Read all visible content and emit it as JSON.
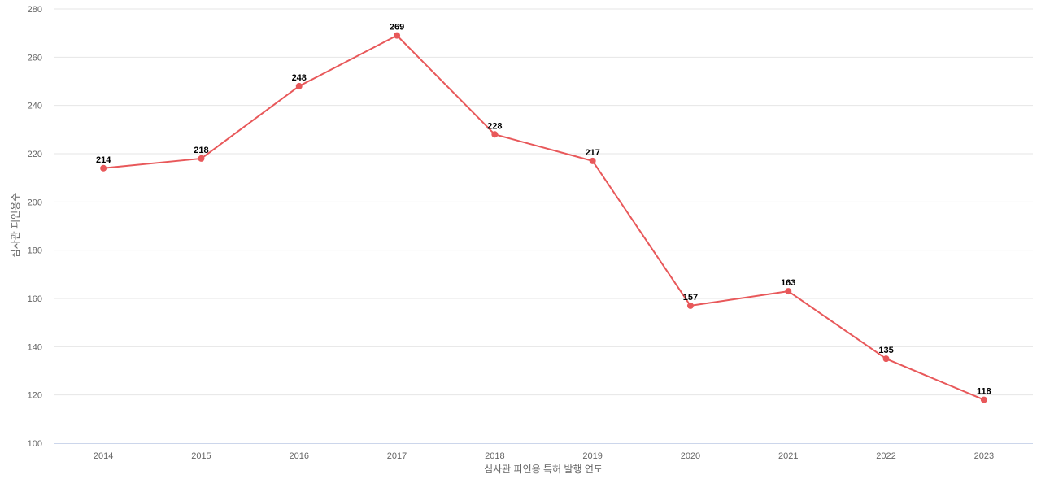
{
  "chart_data": {
    "type": "line",
    "title": "",
    "xlabel": "심사관 피인용 특허 발행 연도",
    "ylabel": "심사관 피인용수",
    "x": [
      "2014",
      "2015",
      "2016",
      "2017",
      "2018",
      "2019",
      "2020",
      "2021",
      "2022",
      "2023"
    ],
    "series": [
      {
        "values": [
          214,
          218,
          248,
          269,
          228,
          217,
          157,
          163,
          135,
          118
        ],
        "color": "#e8585a"
      }
    ],
    "ylim": [
      100,
      280
    ],
    "yticks": [
      100,
      120,
      140,
      160,
      180,
      200,
      220,
      240,
      260,
      280
    ],
    "grid": true,
    "legend": "none",
    "data_labels": true
  }
}
